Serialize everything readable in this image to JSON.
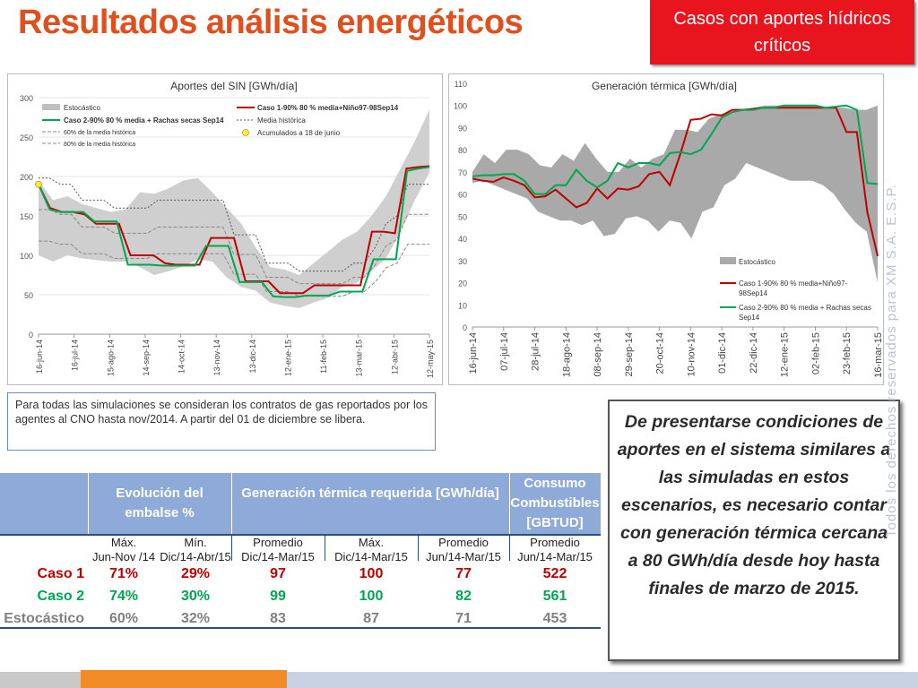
{
  "title": "Resultados análisis energéticos",
  "header_box": "Casos con aportes hídricos críticos",
  "watermark": "Todos los derechos reservados para XM S.A. E.S.P.",
  "note": "Para todas las simulaciones se consideran los contratos de gas reportados por los agentes al CNO hasta nov/2014. A partir del 01 de diciembre se libera.",
  "conclusion": "De presentarse condiciones de aportes en el sistema similares a las simuladas en estos escenarios, es necesario contar con generación térmica cercana a 80 GWh/día desde hoy hasta finales de marzo de 2015.",
  "colors": {
    "title": "#e0501e",
    "red_box": "#e8141e",
    "caso1": "#c00000",
    "caso2": "#00a651",
    "estocastico": "#808080",
    "table_header": "#8eaad8"
  },
  "chart_data": [
    {
      "type": "line",
      "title": "Aportes del SIN [GWh/día]",
      "x_ticks": [
        "16-jun-14",
        "16-jul-14",
        "15-ago-14",
        "14-sep-14",
        "14-oct-14",
        "13-nov-14",
        "13-dic-14",
        "12-ene-15",
        "11-feb-15",
        "13-mar-15",
        "12-abr-15",
        "12-may-15"
      ],
      "ylim": [
        0,
        300
      ],
      "y_ticks": [
        0,
        50,
        100,
        150,
        200,
        250,
        300
      ],
      "legend_labels": [
        "Estocástico",
        "Caso 1-90% 80 % media+Niño97-98Sep14",
        "Caso 2-90% 80 % media + Rachas secas Sep14",
        "Media histórica",
        "60% de la media histórica",
        "Acumulados a 18 de junio",
        "80% de la media histórica"
      ],
      "series": [
        {
          "name": "Estocástico (máx)",
          "values": [
            195,
            170,
            175,
            165,
            160,
            155,
            158,
            180,
            178,
            185,
            195,
            198,
            180,
            160,
            140,
            110,
            85,
            82,
            75,
            90,
            105,
            120,
            130,
            150,
            175,
            210,
            245,
            285
          ]
        },
        {
          "name": "Estocástico (mín)",
          "values": [
            100,
            92,
            100,
            96,
            94,
            92,
            92,
            85,
            75,
            80,
            86,
            95,
            92,
            72,
            60,
            55,
            40,
            36,
            33,
            40,
            46,
            60,
            65,
            80,
            96,
            130,
            170,
            205
          ]
        },
        {
          "name": "Caso 1-90% 80 % media+Niño97-98Sep14",
          "values": [
            190,
            160,
            155,
            155,
            152,
            140,
            140,
            140,
            100,
            100,
            100,
            90,
            88,
            88,
            88,
            122,
            122,
            122,
            67,
            67,
            67,
            52,
            52,
            52,
            62,
            62,
            62,
            62,
            62,
            130,
            130,
            128,
            210,
            212,
            213
          ]
        },
        {
          "name": "Caso 2-90% 80 % media + Rachas secas Sep14",
          "values": [
            190,
            158,
            155,
            155,
            155,
            143,
            143,
            143,
            88,
            88,
            88,
            87,
            87,
            87,
            87,
            112,
            112,
            112,
            66,
            66,
            66,
            48,
            47,
            47,
            49,
            49,
            49,
            54,
            54,
            54,
            95,
            95,
            95,
            207,
            210,
            212
          ]
        },
        {
          "name": "Media histórica",
          "values": [
            198,
            198,
            190,
            190,
            170,
            170,
            170,
            160,
            160,
            160,
            160,
            170,
            170,
            170,
            170,
            170,
            170,
            170,
            126,
            126,
            126,
            90,
            90,
            90,
            80,
            80,
            80,
            80,
            80,
            90,
            90,
            110,
            140,
            150,
            190,
            190,
            190
          ]
        },
        {
          "name": "60% de la media histórica",
          "values": [
            118,
            118,
            114,
            114,
            102,
            102,
            102,
            96,
            96,
            96,
            96,
            102,
            102,
            102,
            102,
            102,
            102,
            102,
            76,
            76,
            76,
            54,
            54,
            54,
            48,
            48,
            48,
            48,
            48,
            54,
            54,
            66,
            84,
            90,
            114,
            114,
            114
          ]
        },
        {
          "name": "80% de la media histórica",
          "values": [
            158,
            158,
            152,
            152,
            136,
            136,
            136,
            128,
            128,
            128,
            128,
            136,
            136,
            136,
            136,
            136,
            136,
            136,
            101,
            101,
            101,
            72,
            72,
            72,
            64,
            64,
            64,
            64,
            64,
            72,
            72,
            88,
            112,
            120,
            152,
            152,
            152
          ]
        },
        {
          "name": "Acumulados a 18 de junio",
          "values": [
            190
          ]
        }
      ]
    },
    {
      "type": "line",
      "title": "Generación térmica [GWh/día]",
      "x_ticks": [
        "16-jun-14",
        "07-jul-14",
        "28-jul-14",
        "18-ago-14",
        "08-sep-14",
        "29-sep-14",
        "20-oct-14",
        "10-nov-14",
        "01-dic-14",
        "22-dic-14",
        "12-ene-15",
        "02-feb-15",
        "23-feb-15",
        "16-mar-15"
      ],
      "ylim": [
        0,
        110
      ],
      "y_ticks": [
        0,
        10,
        20,
        30,
        40,
        50,
        60,
        70,
        80,
        90,
        100,
        110
      ],
      "legend_labels": [
        "Estocástico",
        "Caso 1-90% 80 % media+Niño97-98Sep14",
        "Caso 2-90% 80 % media + Rachas secas Sep14"
      ],
      "series": [
        {
          "name": "Estocástico (máx)",
          "values": [
            70,
            78,
            74,
            80,
            80,
            78,
            73,
            72,
            78,
            75,
            83,
            76,
            70,
            70,
            76,
            72,
            76,
            78,
            89,
            89,
            88,
            94,
            96,
            97,
            98,
            99,
            100,
            100,
            100,
            100,
            100,
            99,
            99,
            99,
            98,
            98,
            100
          ]
        },
        {
          "name": "Estocástico (mín)",
          "values": [
            65,
            66,
            64,
            62,
            60,
            58,
            52,
            50,
            48,
            48,
            46,
            48,
            41,
            42,
            49,
            50,
            48,
            43,
            48,
            47,
            40,
            52,
            54,
            64,
            67,
            74,
            72,
            70,
            68,
            66,
            66,
            66,
            64,
            60,
            53,
            47,
            43,
            20
          ]
        },
        {
          "name": "Caso 1-90% 80 % media+Niño97-98Sep14",
          "values": [
            67,
            66,
            65.5,
            67.5,
            66,
            64,
            58.5,
            59,
            62,
            58,
            54,
            56,
            62.5,
            58,
            62.5,
            62,
            63.5,
            69,
            70,
            64,
            78,
            93.5,
            94,
            96,
            95.5,
            98,
            98,
            98.5,
            99,
            99,
            99,
            99,
            99,
            99,
            99,
            99,
            88,
            88,
            52,
            32
          ]
        },
        {
          "name": "Caso 2-90% 80 % media + Rachas secas Sep14",
          "values": [
            68,
            68.5,
            68.5,
            69,
            69,
            66,
            60,
            60,
            64,
            64,
            71,
            66,
            63,
            66,
            74,
            72,
            74,
            74,
            73,
            78.5,
            79,
            78,
            80,
            87,
            94.5,
            97,
            98,
            98,
            99,
            99,
            100,
            100,
            100,
            100,
            99,
            99.5,
            100,
            98,
            65,
            64.5
          ]
        }
      ]
    }
  ],
  "table": {
    "headers": {
      "embalse": "Evolución del embalse %",
      "generacion": "Generación térmica requerida [GWh/día]",
      "consumo": "Consumo Combustibles [GBTUD]"
    },
    "subheaders": [
      "Máx.\nJun-Nov /14",
      "Mín.\nDic/14-Abr/15",
      "Promedio\nDic/14-Mar/15",
      "Máx.\nDic/14-Mar/15",
      "Promedio\nJun/14-Mar/15",
      "Promedio\nJun/14-Mar/15"
    ],
    "rows": [
      {
        "name": "Caso 1",
        "cells": [
          "71%",
          "29%",
          "97",
          "100",
          "77",
          "522"
        ]
      },
      {
        "name": "Caso 2",
        "cells": [
          "74%",
          "30%",
          "99",
          "100",
          "82",
          "561"
        ]
      },
      {
        "name": "Estocástico",
        "cells": [
          "60%",
          "32%",
          "83",
          "87",
          "71",
          "453"
        ]
      }
    ]
  }
}
